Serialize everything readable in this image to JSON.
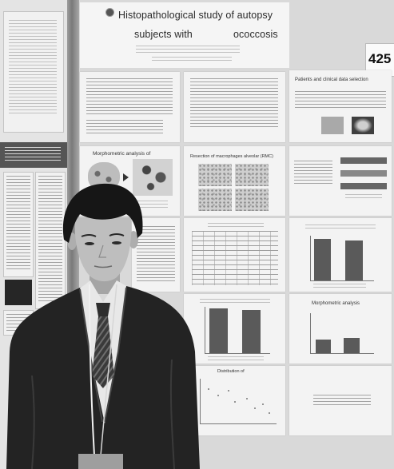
{
  "poster": {
    "title_line1": "Histopathological study of autopsy",
    "title_line2a": "subjects with",
    "title_line2b": "ococcosis",
    "number": "425",
    "panels": {
      "patients_heading": "Patients and clinical data selection",
      "morphometric_heading": "Morphometric analysis of",
      "resection_heading": "Resection of macrophages alveolar (RMC)",
      "distribution_heading": "Distribution of",
      "morphometric2_heading": "Morphometric analysis"
    }
  },
  "colors": {
    "board": "#d9d9d9",
    "suit": "#232323",
    "hair": "#161616",
    "shirt": "#e8e8e8"
  }
}
